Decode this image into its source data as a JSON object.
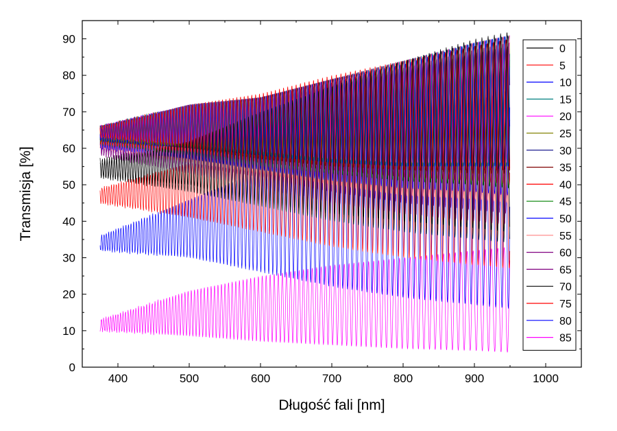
{
  "chart_data": {
    "type": "line",
    "title": "",
    "xlabel": "Długość fali [nm]",
    "ylabel": "Transmisja [%]",
    "xlim": [
      350,
      1050
    ],
    "ylim": [
      0,
      95
    ],
    "x_ticks": [
      400,
      500,
      600,
      700,
      800,
      900,
      1000
    ],
    "y_ticks": [
      0,
      10,
      20,
      30,
      40,
      50,
      60,
      70,
      80,
      90
    ],
    "x_range_data": [
      375,
      950
    ],
    "grid": false,
    "legend_position": "right",
    "series": [
      {
        "name": "0",
        "color": "#000000",
        "lower": [
          [
            375,
            52
          ],
          [
            500,
            50
          ],
          [
            600,
            45
          ],
          [
            700,
            42
          ],
          [
            800,
            40
          ],
          [
            900,
            38
          ],
          [
            950,
            37
          ]
        ],
        "upper": [
          [
            375,
            56
          ],
          [
            500,
            62
          ],
          [
            600,
            70
          ],
          [
            700,
            77
          ],
          [
            800,
            84
          ],
          [
            900,
            90
          ],
          [
            950,
            92
          ]
        ],
        "period": [
          [
            375,
            3.2
          ],
          [
            950,
            9
          ]
        ]
      },
      {
        "name": "5",
        "color": "#ff0000",
        "lower": [
          [
            375,
            63
          ],
          [
            500,
            60
          ],
          [
            600,
            57
          ],
          [
            700,
            55
          ],
          [
            800,
            54
          ],
          [
            900,
            54
          ],
          [
            950,
            54
          ]
        ],
        "upper": [
          [
            375,
            66
          ],
          [
            500,
            72
          ],
          [
            600,
            75
          ],
          [
            700,
            80
          ],
          [
            800,
            84
          ],
          [
            900,
            88
          ],
          [
            950,
            90
          ]
        ],
        "period": [
          [
            375,
            3.2
          ],
          [
            950,
            9
          ]
        ]
      },
      {
        "name": "10",
        "color": "#0000ff",
        "lower": [
          [
            375,
            62
          ],
          [
            500,
            60
          ],
          [
            600,
            58
          ],
          [
            700,
            56
          ],
          [
            800,
            55
          ],
          [
            900,
            55
          ],
          [
            950,
            55
          ]
        ],
        "upper": [
          [
            375,
            66
          ],
          [
            500,
            72
          ],
          [
            600,
            74
          ],
          [
            700,
            79
          ],
          [
            800,
            83
          ],
          [
            900,
            89
          ],
          [
            950,
            91
          ]
        ],
        "period": [
          [
            375,
            3.2
          ],
          [
            950,
            9
          ]
        ]
      },
      {
        "name": "15",
        "color": "#008080",
        "lower": [
          [
            375,
            63
          ],
          [
            500,
            61
          ],
          [
            600,
            58
          ],
          [
            700,
            56
          ],
          [
            800,
            55
          ],
          [
            900,
            55
          ],
          [
            950,
            55
          ]
        ],
        "upper": [
          [
            375,
            66
          ],
          [
            500,
            72
          ],
          [
            600,
            74
          ],
          [
            700,
            79
          ],
          [
            800,
            84
          ],
          [
            900,
            89
          ],
          [
            950,
            91
          ]
        ],
        "period": [
          [
            375,
            3.2
          ],
          [
            950,
            9
          ]
        ]
      },
      {
        "name": "20",
        "color": "#ff00ff",
        "lower": [
          [
            375,
            63
          ],
          [
            500,
            61
          ],
          [
            600,
            59
          ],
          [
            700,
            57
          ],
          [
            800,
            56
          ],
          [
            900,
            56
          ],
          [
            950,
            56
          ]
        ],
        "upper": [
          [
            375,
            66
          ],
          [
            500,
            72
          ],
          [
            600,
            74
          ],
          [
            700,
            79
          ],
          [
            800,
            84
          ],
          [
            900,
            89
          ],
          [
            950,
            91
          ]
        ],
        "period": [
          [
            375,
            3.2
          ],
          [
            950,
            9
          ]
        ]
      },
      {
        "name": "25",
        "color": "#808000",
        "lower": [
          [
            375,
            62
          ],
          [
            500,
            60
          ],
          [
            600,
            58
          ],
          [
            700,
            56
          ],
          [
            800,
            55
          ],
          [
            900,
            55
          ],
          [
            950,
            55
          ]
        ],
        "upper": [
          [
            375,
            66
          ],
          [
            500,
            72
          ],
          [
            600,
            74
          ],
          [
            700,
            79
          ],
          [
            800,
            84
          ],
          [
            900,
            89
          ],
          [
            950,
            91
          ]
        ],
        "period": [
          [
            375,
            3.2
          ],
          [
            950,
            9
          ]
        ]
      },
      {
        "name": "30",
        "color": "#000080",
        "lower": [
          [
            375,
            62
          ],
          [
            500,
            60
          ],
          [
            600,
            58
          ],
          [
            700,
            56
          ],
          [
            800,
            55
          ],
          [
            900,
            55
          ],
          [
            950,
            54
          ]
        ],
        "upper": [
          [
            375,
            66
          ],
          [
            500,
            72
          ],
          [
            600,
            74
          ],
          [
            700,
            79
          ],
          [
            800,
            84
          ],
          [
            900,
            89
          ],
          [
            950,
            91
          ]
        ],
        "period": [
          [
            375,
            3.2
          ],
          [
            950,
            9
          ]
        ]
      },
      {
        "name": "35",
        "color": "#800000",
        "lower": [
          [
            375,
            62
          ],
          [
            500,
            60
          ],
          [
            600,
            57
          ],
          [
            700,
            55
          ],
          [
            800,
            54
          ],
          [
            900,
            53
          ],
          [
            950,
            53
          ]
        ],
        "upper": [
          [
            375,
            66
          ],
          [
            500,
            71
          ],
          [
            600,
            74
          ],
          [
            700,
            79
          ],
          [
            800,
            83
          ],
          [
            900,
            88
          ],
          [
            950,
            90
          ]
        ],
        "period": [
          [
            375,
            3.2
          ],
          [
            950,
            9
          ]
        ]
      },
      {
        "name": "40",
        "color": "#ff0000",
        "lower": [
          [
            375,
            61
          ],
          [
            500,
            59
          ],
          [
            600,
            56
          ],
          [
            700,
            54
          ],
          [
            800,
            52
          ],
          [
            900,
            51
          ],
          [
            950,
            50
          ]
        ],
        "upper": [
          [
            375,
            66
          ],
          [
            500,
            71
          ],
          [
            600,
            74
          ],
          [
            700,
            78
          ],
          [
            800,
            83
          ],
          [
            900,
            88
          ],
          [
            950,
            90
          ]
        ],
        "period": [
          [
            375,
            3.2
          ],
          [
            950,
            9
          ]
        ]
      },
      {
        "name": "45",
        "color": "#008000",
        "lower": [
          [
            375,
            61
          ],
          [
            500,
            58
          ],
          [
            600,
            55
          ],
          [
            700,
            53
          ],
          [
            800,
            51
          ],
          [
            900,
            50
          ],
          [
            950,
            49
          ]
        ],
        "upper": [
          [
            375,
            66
          ],
          [
            500,
            71
          ],
          [
            600,
            73
          ],
          [
            700,
            78
          ],
          [
            800,
            83
          ],
          [
            900,
            88
          ],
          [
            950,
            90
          ]
        ],
        "period": [
          [
            375,
            3.2
          ],
          [
            950,
            9
          ]
        ]
      },
      {
        "name": "50",
        "color": "#0000ff",
        "lower": [
          [
            375,
            60
          ],
          [
            500,
            57
          ],
          [
            600,
            54
          ],
          [
            700,
            51
          ],
          [
            800,
            49
          ],
          [
            900,
            48
          ],
          [
            950,
            47
          ]
        ],
        "upper": [
          [
            375,
            66
          ],
          [
            500,
            71
          ],
          [
            600,
            73
          ],
          [
            700,
            78
          ],
          [
            800,
            83
          ],
          [
            900,
            88
          ],
          [
            950,
            90
          ]
        ],
        "period": [
          [
            375,
            3.2
          ],
          [
            950,
            9
          ]
        ]
      },
      {
        "name": "55",
        "color": "#ff8080",
        "lower": [
          [
            375,
            60
          ],
          [
            500,
            56
          ],
          [
            600,
            53
          ],
          [
            700,
            50
          ],
          [
            800,
            47
          ],
          [
            900,
            46
          ],
          [
            950,
            45
          ]
        ],
        "upper": [
          [
            375,
            66
          ],
          [
            500,
            71
          ],
          [
            600,
            73
          ],
          [
            700,
            78
          ],
          [
            800,
            82
          ],
          [
            900,
            87
          ],
          [
            950,
            89
          ]
        ],
        "period": [
          [
            375,
            3.2
          ],
          [
            950,
            9
          ]
        ]
      },
      {
        "name": "60",
        "color": "#800080",
        "lower": [
          [
            375,
            59
          ],
          [
            500,
            55
          ],
          [
            600,
            52
          ],
          [
            700,
            48
          ],
          [
            800,
            45
          ],
          [
            900,
            43
          ],
          [
            950,
            42
          ]
        ],
        "upper": [
          [
            375,
            64
          ],
          [
            500,
            70
          ],
          [
            600,
            73
          ],
          [
            700,
            77
          ],
          [
            800,
            82
          ],
          [
            900,
            87
          ],
          [
            950,
            89
          ]
        ],
        "period": [
          [
            375,
            3.2
          ],
          [
            950,
            9
          ]
        ]
      },
      {
        "name": "65",
        "color": "#800080",
        "lower": [
          [
            375,
            58
          ],
          [
            500,
            53
          ],
          [
            600,
            49
          ],
          [
            700,
            45
          ],
          [
            800,
            42
          ],
          [
            900,
            40
          ],
          [
            950,
            39
          ]
        ],
        "upper": [
          [
            375,
            63
          ],
          [
            500,
            69
          ],
          [
            600,
            72
          ],
          [
            700,
            77
          ],
          [
            800,
            81
          ],
          [
            900,
            86
          ],
          [
            950,
            88
          ]
        ],
        "period": [
          [
            375,
            3.2
          ],
          [
            950,
            9
          ]
        ]
      },
      {
        "name": "70",
        "color": "#000000",
        "lower": [
          [
            375,
            52
          ],
          [
            500,
            48
          ],
          [
            600,
            44
          ],
          [
            700,
            40
          ],
          [
            800,
            37
          ],
          [
            900,
            35
          ],
          [
            950,
            34
          ]
        ],
        "upper": [
          [
            375,
            57
          ],
          [
            500,
            63
          ],
          [
            600,
            68
          ],
          [
            700,
            74
          ],
          [
            800,
            79
          ],
          [
            900,
            84
          ],
          [
            950,
            86
          ]
        ],
        "period": [
          [
            375,
            3.2
          ],
          [
            950,
            9
          ]
        ]
      },
      {
        "name": "75",
        "color": "#ff0000",
        "lower": [
          [
            375,
            45
          ],
          [
            500,
            41
          ],
          [
            600,
            37
          ],
          [
            700,
            33
          ],
          [
            800,
            30
          ],
          [
            900,
            28
          ],
          [
            950,
            27
          ]
        ],
        "upper": [
          [
            375,
            49
          ],
          [
            500,
            56
          ],
          [
            600,
            62
          ],
          [
            700,
            68
          ],
          [
            800,
            74
          ],
          [
            900,
            79
          ],
          [
            950,
            82
          ]
        ],
        "period": [
          [
            375,
            3.2
          ],
          [
            950,
            9
          ]
        ]
      },
      {
        "name": "80",
        "color": "#0000ff",
        "lower": [
          [
            375,
            32
          ],
          [
            500,
            30
          ],
          [
            600,
            26
          ],
          [
            700,
            22
          ],
          [
            800,
            19
          ],
          [
            900,
            17
          ],
          [
            950,
            16
          ]
        ],
        "upper": [
          [
            375,
            36
          ],
          [
            500,
            46
          ],
          [
            600,
            54
          ],
          [
            700,
            62
          ],
          [
            800,
            68
          ],
          [
            900,
            73
          ],
          [
            950,
            76
          ]
        ],
        "period": [
          [
            375,
            3.2
          ],
          [
            950,
            9
          ]
        ]
      },
      {
        "name": "85",
        "color": "#ff00ff",
        "lower": [
          [
            375,
            10
          ],
          [
            500,
            8.5
          ],
          [
            600,
            7
          ],
          [
            700,
            6
          ],
          [
            800,
            5
          ],
          [
            900,
            4.5
          ],
          [
            950,
            4
          ]
        ],
        "upper": [
          [
            375,
            13
          ],
          [
            500,
            21
          ],
          [
            600,
            25
          ],
          [
            700,
            28
          ],
          [
            800,
            30
          ],
          [
            900,
            32
          ],
          [
            950,
            33
          ]
        ],
        "period": [
          [
            375,
            3.2
          ],
          [
            950,
            9
          ]
        ]
      }
    ]
  }
}
